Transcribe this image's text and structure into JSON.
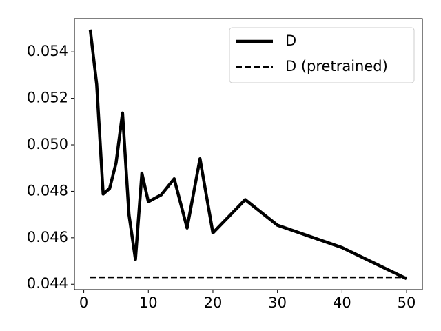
{
  "chart_data": {
    "type": "line",
    "xlim": [
      -1.45,
      52.45
    ],
    "xticks": [
      0,
      10,
      20,
      30,
      40,
      50
    ],
    "ylim": [
      0.04377,
      0.05543
    ],
    "yticks": [
      0.044,
      0.046,
      0.048,
      {
        "value": 0.05,
        "label": "0.050"
      },
      0.052,
      0.054
    ],
    "legend": "upper right",
    "series": [
      {
        "name": "D",
        "color": "#000000",
        "style": "solid",
        "x": [
          1,
          2,
          3,
          4,
          5,
          6,
          7,
          8,
          9,
          10,
          12,
          14,
          16,
          18,
          20,
          25,
          30,
          40,
          50
        ],
        "values": [
          0.05496,
          0.0526,
          0.04788,
          0.04812,
          0.04922,
          0.05137,
          0.04699,
          0.04507,
          0.04878,
          0.04755,
          0.04785,
          0.04854,
          0.04642,
          0.0494,
          0.04621,
          0.04764,
          0.04654,
          0.04558,
          0.04424
        ]
      },
      {
        "name": "D (pretrained)",
        "color": "#000000",
        "style": "dashed",
        "x": [
          1,
          50
        ],
        "values": [
          0.0443,
          0.0443
        ]
      }
    ]
  }
}
